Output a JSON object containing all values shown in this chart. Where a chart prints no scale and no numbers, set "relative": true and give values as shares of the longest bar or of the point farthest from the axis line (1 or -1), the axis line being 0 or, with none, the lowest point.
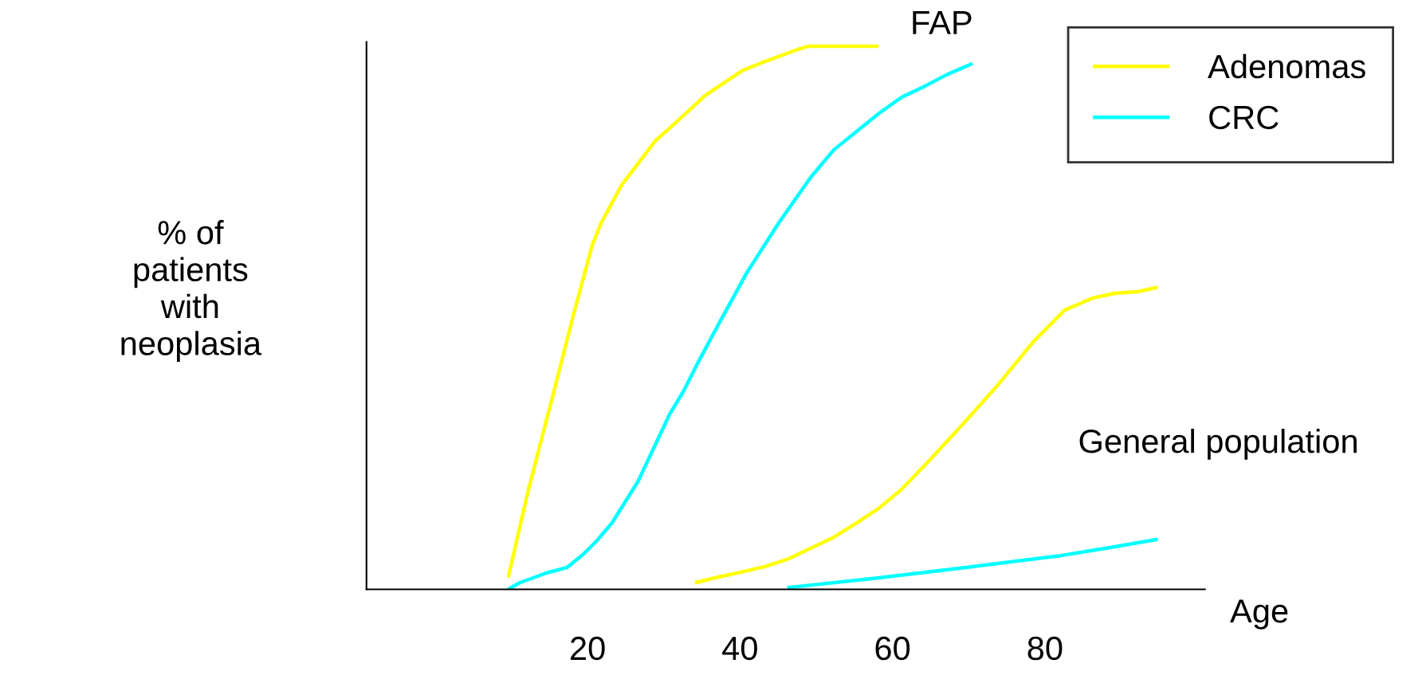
{
  "chart_data": {
    "type": "line",
    "relative": true,
    "xlabel": "Age",
    "ylabel": "% of\npatients\nwith\nneoplasia",
    "xlim": [
      -9,
      101
    ],
    "xticks": [
      20,
      40,
      60,
      80
    ],
    "grid": false,
    "legend": "top right",
    "marker": "none",
    "line_style": "solid",
    "annotations": [
      "FAP",
      "General population"
    ],
    "series": [
      {
        "name": "Adenomas",
        "color": "#ffff00",
        "x": [
          9.6,
          12.2,
          15.6,
          18.2,
          20.6,
          21.8,
          24.5,
          26.2,
          28.9,
          31.3,
          35.5,
          40.3,
          43.3,
          47.4,
          49.0,
          58.2
        ],
        "values": [
          0.022,
          0.181,
          0.365,
          0.508,
          0.633,
          0.675,
          0.745,
          0.776,
          0.826,
          0.856,
          0.91,
          0.955,
          0.972,
          0.993,
          1,
          1
        ]
      },
      {
        "name": "CRC",
        "color": "#00ffff",
        "x": [
          9.6,
          11.1,
          14.6,
          17.3,
          19.4,
          21.2,
          23.2,
          26.6,
          30.8,
          32.6,
          34.4,
          37.3,
          40.9,
          45.1,
          49.3,
          52.3,
          58.2,
          61.2,
          64.2,
          67.2,
          70.5
        ],
        "values": [
          0,
          0.012,
          0.03,
          0.04,
          0.064,
          0.089,
          0.122,
          0.198,
          0.323,
          0.365,
          0.415,
          0.491,
          0.583,
          0.675,
          0.759,
          0.809,
          0.876,
          0.906,
          0.926,
          0.948,
          0.968
        ]
      },
      {
        "color": "#ffff00",
        "x": [
          34.1,
          37.3,
          40.3,
          43.3,
          46.2,
          49.2,
          52.2,
          55.2,
          58.2,
          61.2,
          64.7,
          69.5,
          73.7,
          78.5,
          82.6,
          86.2,
          89.2,
          92.2,
          94.8
        ],
        "values": [
          0.012,
          0.023,
          0.032,
          0.042,
          0.055,
          0.075,
          0.095,
          0.121,
          0.149,
          0.184,
          0.235,
          0.308,
          0.374,
          0.456,
          0.514,
          0.536,
          0.545,
          0.548,
          0.556
        ]
      },
      {
        "color": "#00ffff",
        "x": [
          46.2,
          57.6,
          69.5,
          82.1,
          88.6,
          94.8
        ],
        "values": [
          0.003,
          0.02,
          0.04,
          0.062,
          0.077,
          0.092
        ]
      }
    ]
  }
}
